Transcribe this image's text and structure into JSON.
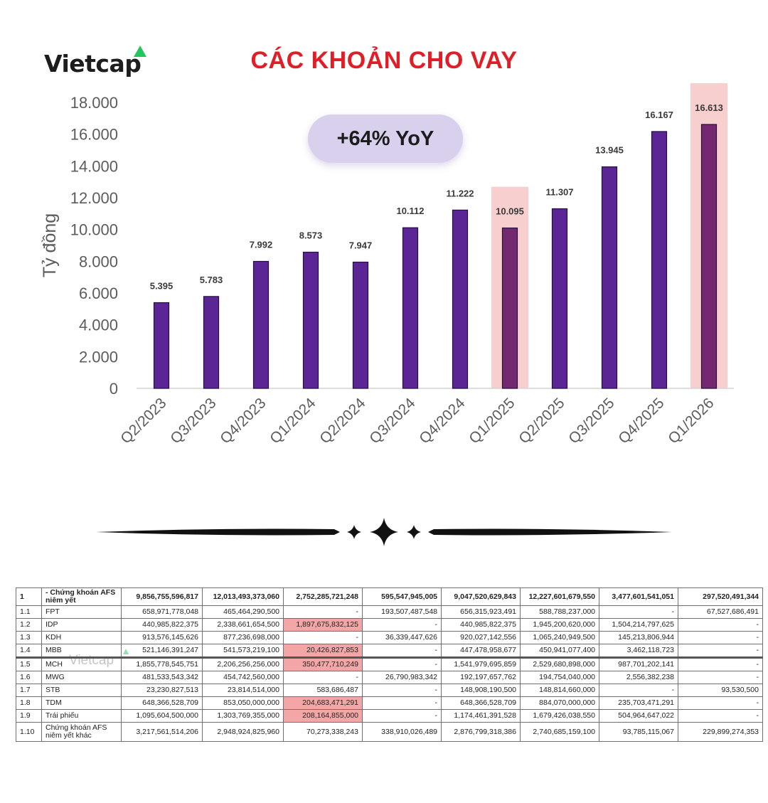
{
  "brand": {
    "name": "Vietcap",
    "accent_color": "#22c55e",
    "logo_icon": "green-triangle-icon"
  },
  "title": "CÁC KHOẢN CHO VAY",
  "badge": "+64% YoY",
  "chart_data": {
    "type": "bar",
    "title": "CÁC KHOẢN CHO VAY",
    "ylabel": "Tỷ đồng",
    "xlabel": "",
    "ylim": [
      0,
      18000
    ],
    "yticks": [
      0,
      2000,
      4000,
      6000,
      8000,
      10000,
      12000,
      14000,
      16000,
      18000
    ],
    "ytick_labels": [
      "0",
      "2.000",
      "4.000",
      "6.000",
      "8.000",
      "10.000",
      "12.000",
      "14.000",
      "16.000",
      "18.000"
    ],
    "categories": [
      "Q2/2023",
      "Q3/2023",
      "Q4/2023",
      "Q1/2024",
      "Q2/2024",
      "Q3/2024",
      "Q4/2024",
      "Q1/2025",
      "Q2/2025",
      "Q3/2025",
      "Q4/2025",
      "Q1/2026"
    ],
    "values": [
      5395,
      5783,
      7992,
      8573,
      7947,
      10112,
      11222,
      10095,
      11307,
      13945,
      16167,
      16613
    ],
    "value_labels": [
      "5.395",
      "5.783",
      "7.992",
      "8.573",
      "7.947",
      "10.112",
      "11.222",
      "10.095",
      "11.307",
      "13.945",
      "16.167",
      "16.613"
    ],
    "highlighted": [
      "Q1/2025",
      "Q1/2026"
    ],
    "bar_color": "#5b2596",
    "highlight_bar_color": "#74286f",
    "highlight_band_color": "#f8cfcf",
    "grid": false,
    "legend": "none"
  },
  "table": {
    "rows": [
      {
        "idx": "1",
        "label": "- Chứng khoán AFS niêm yết",
        "values": [
          "9,856,755,596,817",
          "12,013,493,373,060",
          "2,752,285,721,248",
          "595,547,945,005",
          "9,047,520,629,843",
          "12,227,601,679,550",
          "3,477,601,541,051",
          "297,520,491,344"
        ],
        "highlight": []
      },
      {
        "idx": "1.1",
        "label": "FPT",
        "values": [
          "658,971,778,048",
          "465,464,290,500",
          "-",
          "193,507,487,548",
          "656,315,923,491",
          "588,788,237,000",
          "-",
          "67,527,686,491"
        ],
        "highlight": []
      },
      {
        "idx": "1.2",
        "label": "IDP",
        "values": [
          "440,985,822,375",
          "2,338,661,654,500",
          "1,897,675,832,125",
          "-",
          "440,985,822,375",
          "1,945,200,620,000",
          "1,504,214,797,625",
          "-"
        ],
        "highlight": [
          2
        ]
      },
      {
        "idx": "1.3",
        "label": "KDH",
        "values": [
          "913,576,145,626",
          "877,236,698,000",
          "-",
          "36,339,447,626",
          "920,027,142,556",
          "1,065,240,949,500",
          "145,213,806,944",
          "-"
        ],
        "highlight": []
      },
      {
        "idx": "1.4",
        "label": "MBB",
        "values": [
          "521,146,391,247",
          "541,573,219,100",
          "20,426,827,853",
          "-",
          "447,478,958,677",
          "450,941,077,400",
          "3,462,118,723",
          "-"
        ],
        "highlight": [
          2
        ]
      },
      {
        "idx": "1.5",
        "label": "MCH",
        "values": [
          "1,855,778,545,751",
          "2,206,256,256,000",
          "350,477,710,249",
          "-",
          "1,541,979,695,859",
          "2,529,680,898,000",
          "987,701,202,141",
          "-"
        ],
        "highlight": [
          2
        ]
      },
      {
        "idx": "1.6",
        "label": "MWG",
        "values": [
          "481,533,543,342",
          "454,742,560,000",
          "-",
          "26,790,983,342",
          "192,197,657,762",
          "194,754,040,000",
          "2,556,382,238",
          "-"
        ],
        "highlight": []
      },
      {
        "idx": "1.7",
        "label": "STB",
        "values": [
          "23,230,827,513",
          "23,814,514,000",
          "583,686,487",
          "-",
          "148,908,190,500",
          "148,814,660,000",
          "-",
          "93,530,500"
        ],
        "highlight": []
      },
      {
        "idx": "1.8",
        "label": "TDM",
        "values": [
          "648,366,528,709",
          "853,050,000,000",
          "204,683,471,291",
          "-",
          "648,366,528,709",
          "884,070,000,000",
          "235,703,471,291",
          "-"
        ],
        "highlight": [
          2
        ]
      },
      {
        "idx": "1.9",
        "label": "Trái phiếu",
        "values": [
          "1,095,604,500,000",
          "1,303,769,355,000",
          "208,164,855,000",
          "-",
          "1,174,461,391,528",
          "1,679,426,038,550",
          "504,964,647,022",
          "-"
        ],
        "highlight": [
          2
        ]
      },
      {
        "idx": "1.10",
        "label": "Chứng khoán AFS niêm yết khác",
        "values": [
          "3,217,561,514,206",
          "2,948,924,825,960",
          "70,273,338,243",
          "338,910,026,489",
          "2,876,799,318,386",
          "2,740,685,159,100",
          "93,785,115,067",
          "229,899,274,353"
        ],
        "highlight": []
      }
    ],
    "highlight_color": "#f4a6a6",
    "watermark": "Vietcap"
  }
}
